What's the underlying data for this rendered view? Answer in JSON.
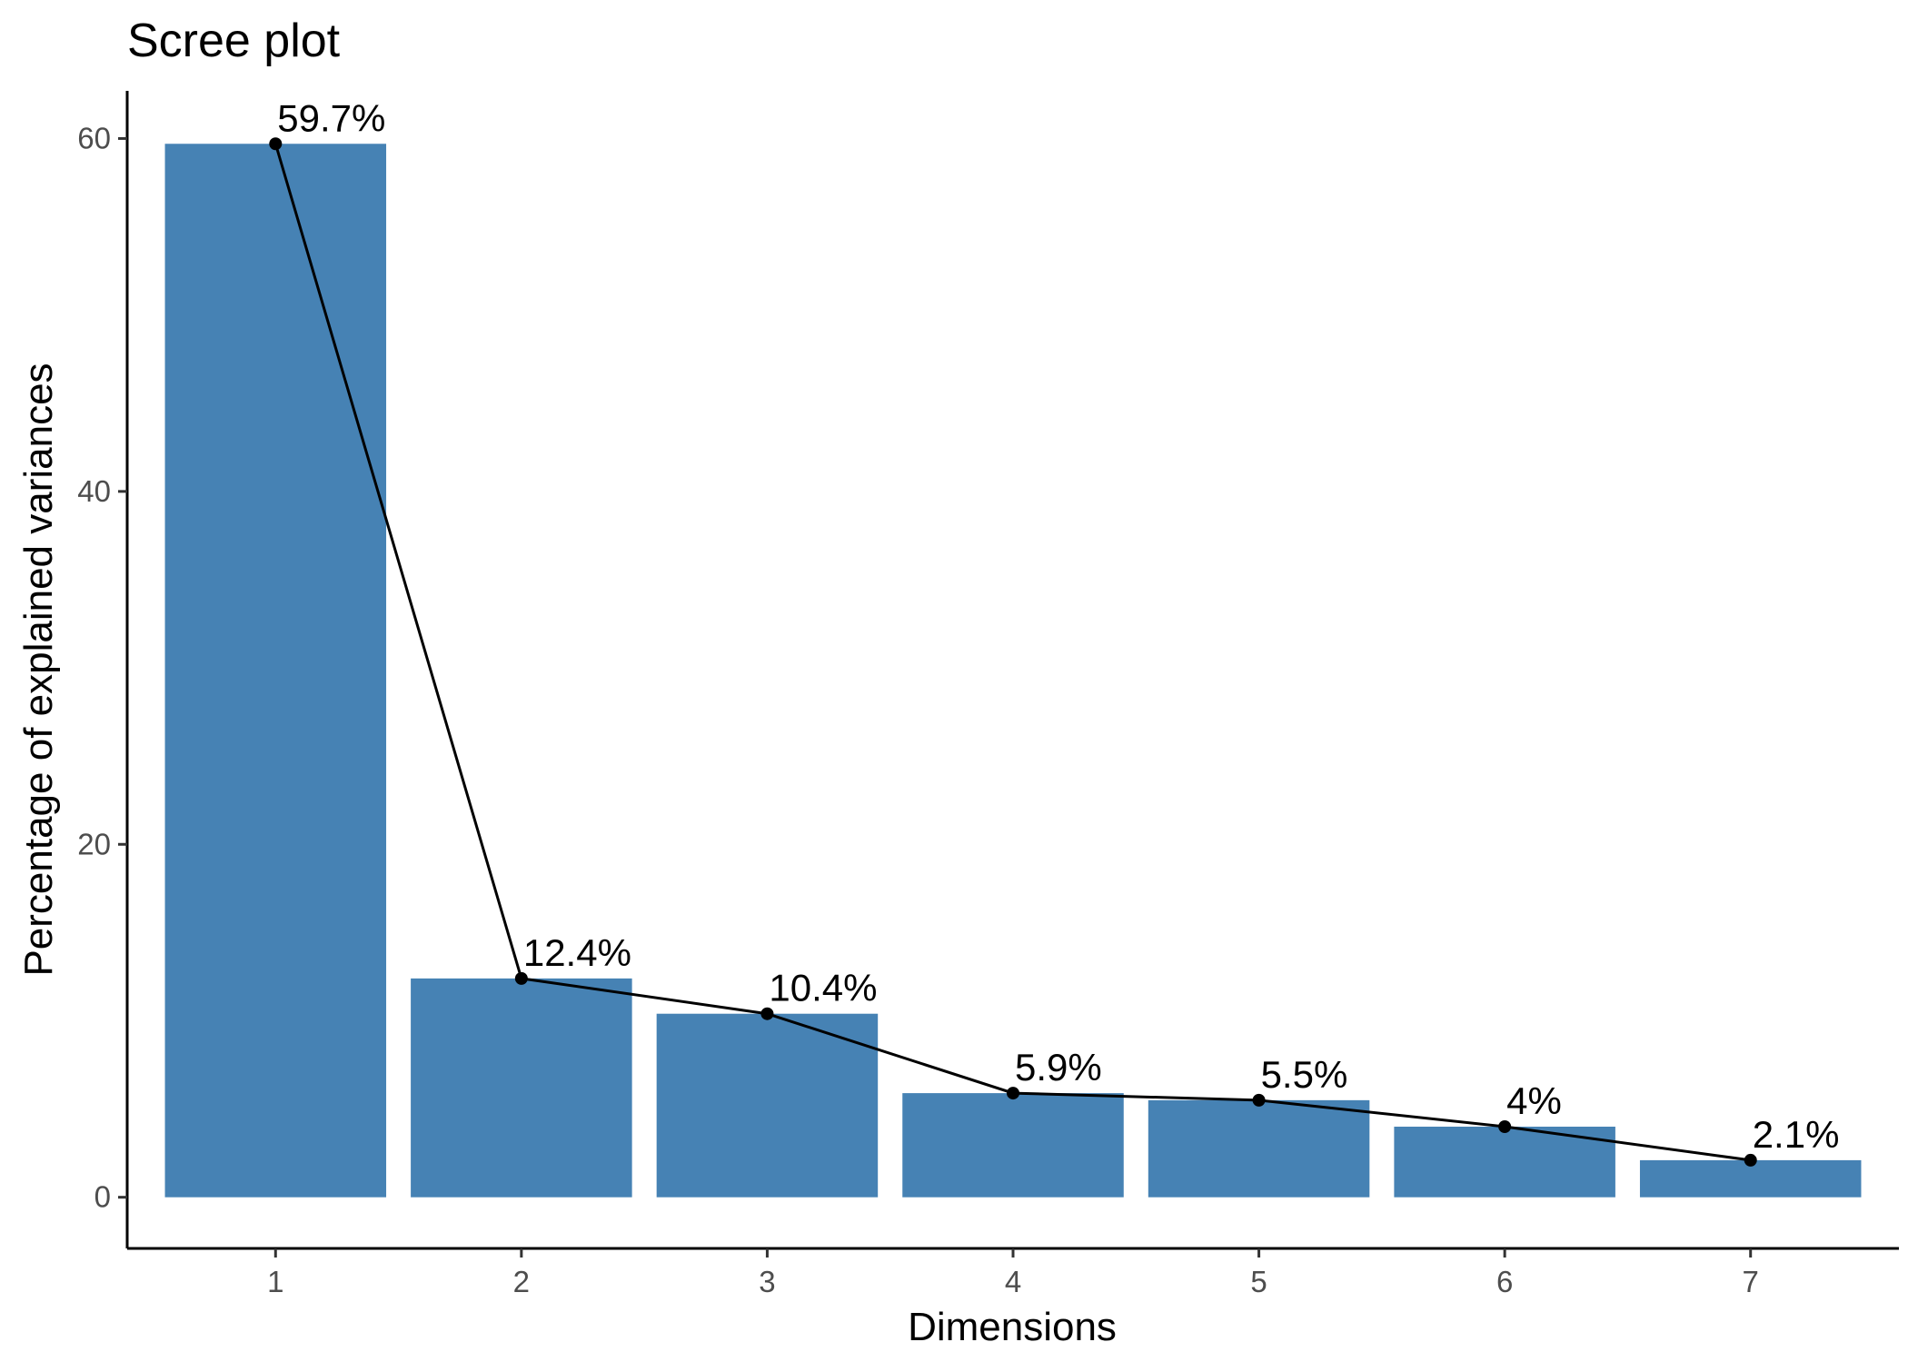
{
  "chart_data": {
    "type": "bar",
    "title": "Scree plot",
    "xlabel": "Dimensions",
    "ylabel": "Percentage of explained variances",
    "categories": [
      "1",
      "2",
      "3",
      "4",
      "5",
      "6",
      "7"
    ],
    "values": [
      59.7,
      12.4,
      10.4,
      5.9,
      5.5,
      4.0,
      2.1
    ],
    "data_labels": [
      "59.7%",
      "12.4%",
      "10.4%",
      "5.9%",
      "5.5%",
      "4%",
      "2.1%"
    ],
    "yticks": [
      0,
      20,
      40,
      60
    ],
    "ylim": [
      -2.9,
      62.7
    ],
    "grid": false,
    "overlay_line": true,
    "colors": {
      "bar": "#4682B4",
      "line": "#000000",
      "point": "#000000"
    }
  }
}
